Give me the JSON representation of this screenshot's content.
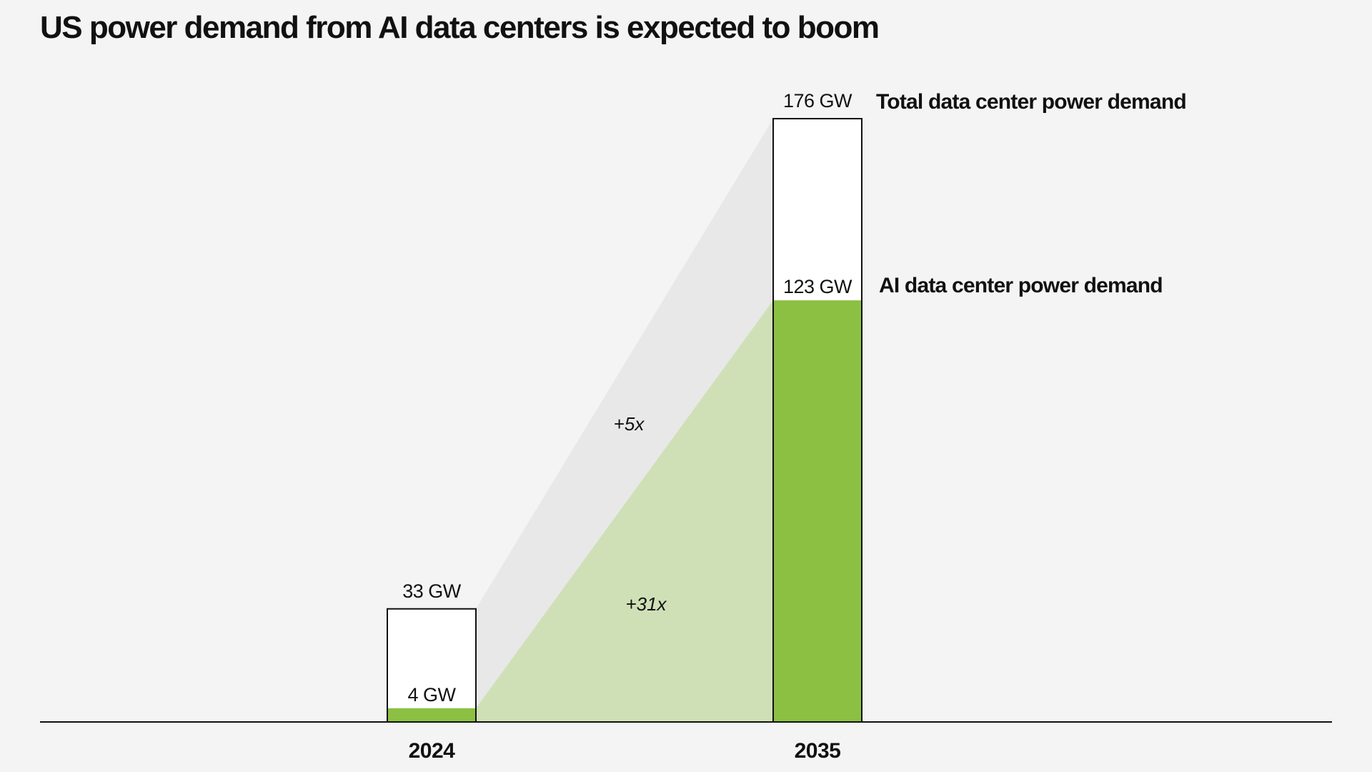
{
  "chart_data": {
    "type": "bar",
    "title": "US power demand from AI data centers is expected to boom",
    "categories": [
      "2024",
      "2035"
    ],
    "unit": "GW",
    "series": [
      {
        "name": "Total data center power demand",
        "values": [
          33,
          176
        ],
        "labels": [
          "33 GW",
          "176 GW"
        ],
        "color": "#ffffff",
        "stroke": "#111111"
      },
      {
        "name": "AI data center power demand",
        "values": [
          4,
          123
        ],
        "labels": [
          "4 GW",
          "123 GW"
        ],
        "color": "#8bc043"
      }
    ],
    "annotations": {
      "total_growth": "+5x",
      "ai_growth": "+31x"
    },
    "connector_colors": {
      "total": "#e8e8e8",
      "ai": "#cfe0b6"
    },
    "ylim": [
      0,
      176
    ],
    "grid": false,
    "legend_placement": "right of 2035 bar"
  }
}
